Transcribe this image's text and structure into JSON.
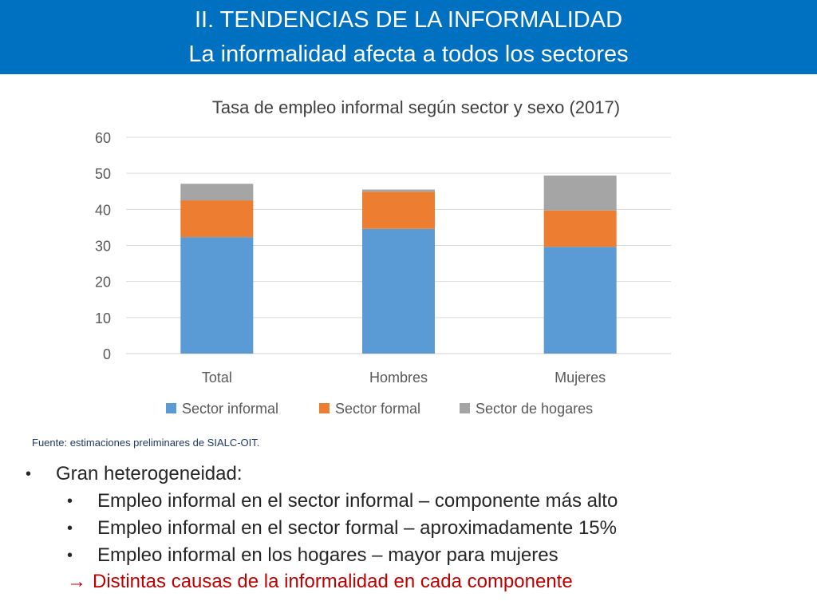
{
  "header": {
    "line1": "II. TENDENCIAS DE LA INFORMALIDAD",
    "line2": "La informalidad afecta a todos los sectores",
    "background": "#0070c0"
  },
  "chart_data": {
    "type": "bar",
    "stacked": true,
    "title": "Tasa de empleo informal según sector y sexo (2017)",
    "categories": [
      "Total",
      "Hombres",
      "Mujeres"
    ],
    "series": [
      {
        "name": "Sector informal",
        "values": [
          32.3,
          34.6,
          29.6
        ],
        "color": "#5b9bd5"
      },
      {
        "name": "Sector formal",
        "values": [
          10.2,
          10.3,
          10.1
        ],
        "color": "#ed7d31"
      },
      {
        "name": "Sector de hogares",
        "values": [
          4.6,
          0.6,
          9.7
        ],
        "color": "#a5a5a5"
      }
    ],
    "ylim": [
      0,
      60
    ],
    "yticks": [
      "0",
      "10",
      "20",
      "30",
      "40",
      "50",
      "60"
    ],
    "grid": true,
    "legend": "bottom"
  },
  "source": "Fuente: estimaciones preliminares de SIALC-OIT.",
  "bullets": {
    "main": "Gran heterogeneidad:",
    "items": [
      "Empleo informal en el sector informal – componente más alto",
      "Empleo informal en el sector formal – aproximadamente 15%",
      "Empleo informal en los hogares – mayor para mujeres"
    ],
    "bullet_glyph": "•",
    "arrow_glyph": "→",
    "conclusion": "Distintas causas de la informalidad en cada componente",
    "conclusion_color": "#c00000"
  }
}
